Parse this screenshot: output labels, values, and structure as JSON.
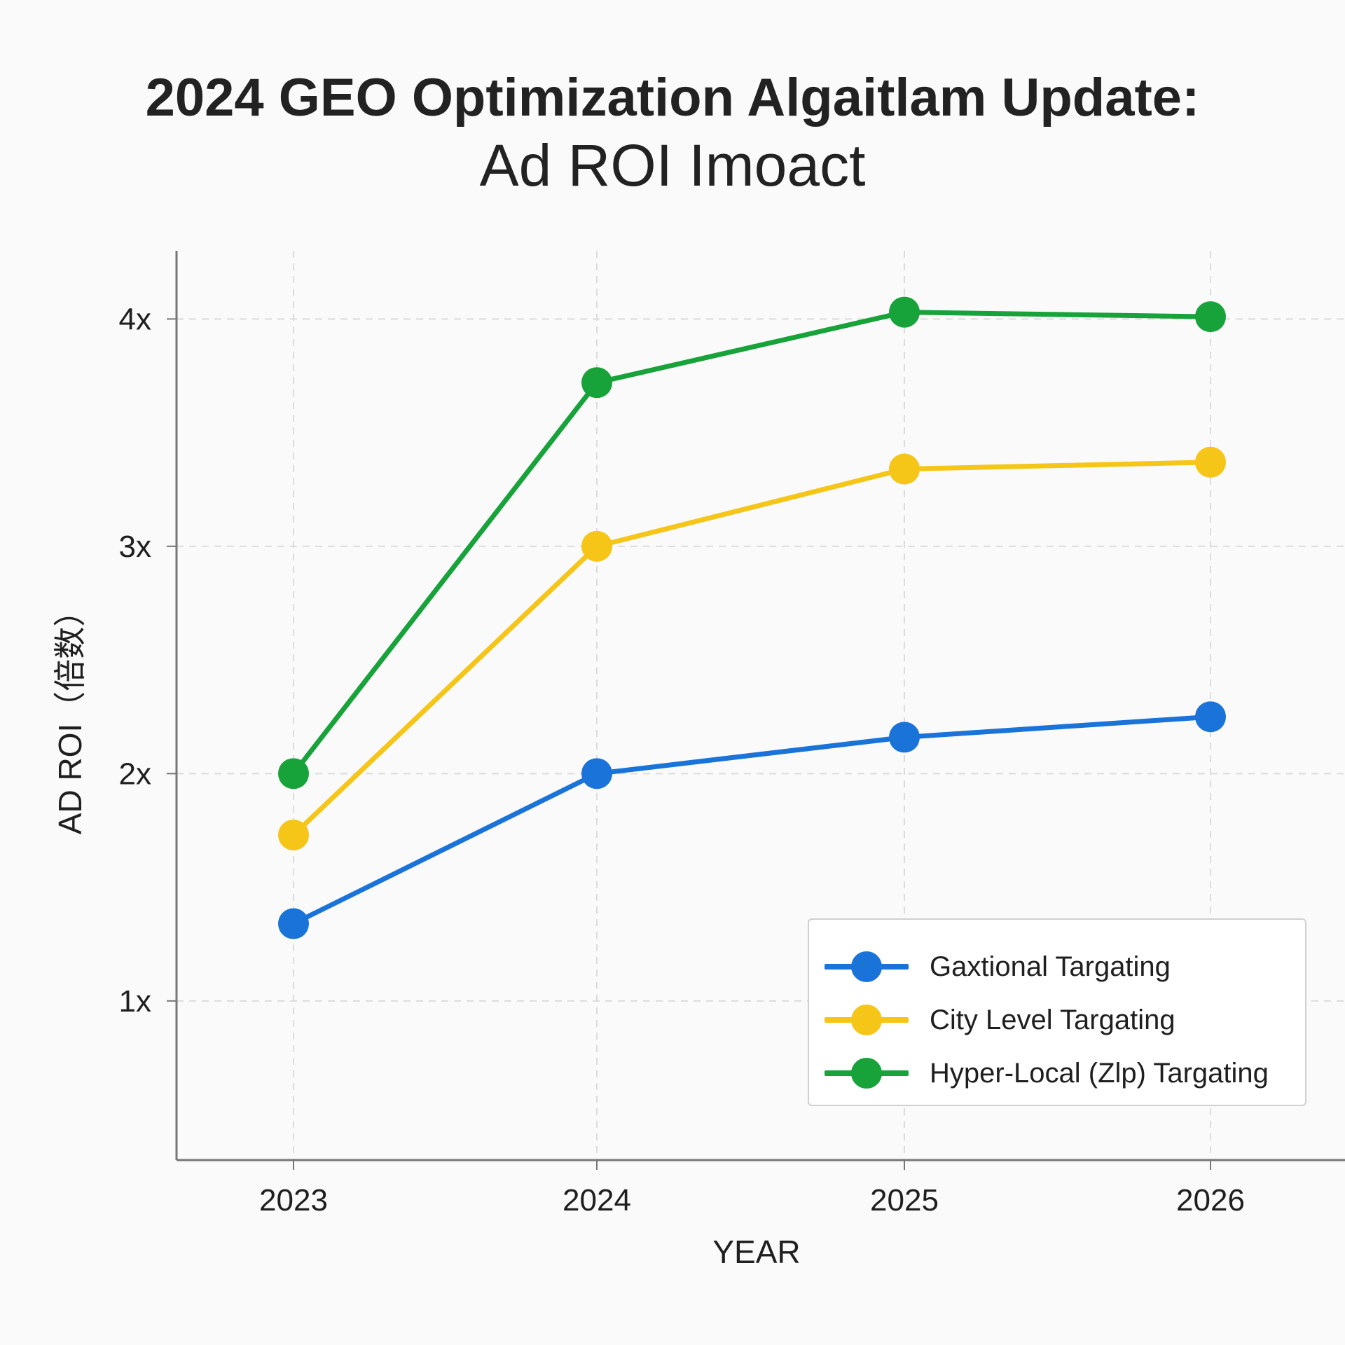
{
  "chart_data": {
    "type": "line",
    "title": [
      "2024 GEO Optimization Algaitlam Update:",
      "Ad ROI Imoact"
    ],
    "xlabel": "YEAR",
    "ylabel": "AD ROI（倍数）",
    "categories": [
      "2023",
      "2024",
      "2025",
      "2026"
    ],
    "y_ticks": [
      {
        "value": 1,
        "label": "1x"
      },
      {
        "value": 2,
        "label": "2x"
      },
      {
        "value": 3,
        "label": "3x"
      },
      {
        "value": 4,
        "label": "4x"
      }
    ],
    "ylim": [
      0.3,
      4.3
    ],
    "grid": true,
    "legend_position": "bottom-right",
    "series": [
      {
        "name": "Gaxtional Targating",
        "color": "#1a73d9",
        "values": [
          1.34,
          2.0,
          2.16,
          2.25
        ]
      },
      {
        "name": "City Level Targating",
        "color": "#f5c518",
        "values": [
          1.73,
          3.0,
          3.34,
          3.37
        ]
      },
      {
        "name": "Hyper-Local (Zlp) Targating",
        "color": "#17a23a",
        "values": [
          2.0,
          3.72,
          4.03,
          4.01
        ]
      }
    ]
  }
}
